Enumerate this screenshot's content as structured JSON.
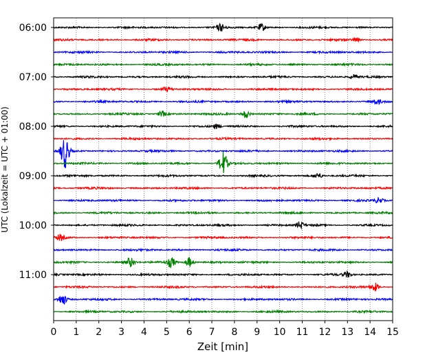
{
  "chart_data": {
    "type": "line",
    "title": "",
    "xlabel": "Zeit  [min]",
    "ylabel": "UTC (Lokalzeit = UTC + 01:00)",
    "xlim": [
      0,
      15
    ],
    "x_ticks": [
      "0",
      "1",
      "2",
      "3",
      "4",
      "5",
      "6",
      "7",
      "8",
      "9",
      "10",
      "11",
      "12",
      "13",
      "14",
      "15"
    ],
    "y_ticks": [
      "06:00",
      "07:00",
      "08:00",
      "09:00",
      "10:00",
      "11:00"
    ],
    "grid": "vertical dotted lines at each minute",
    "trace_interval_minutes": 15,
    "colors_cycle": [
      "#000000",
      "#ff0000",
      "#0000ff",
      "#008000"
    ],
    "traces": [
      {
        "start": "06:00",
        "color": "#000000",
        "events": [
          {
            "t": 7.4,
            "amp": 5
          },
          {
            "t": 9.2,
            "amp": 5
          }
        ]
      },
      {
        "start": "06:15",
        "color": "#ff0000",
        "events": [
          {
            "t": 13.4,
            "amp": 3
          }
        ]
      },
      {
        "start": "06:30",
        "color": "#0000ff",
        "events": []
      },
      {
        "start": "06:45",
        "color": "#008000",
        "events": []
      },
      {
        "start": "07:00",
        "color": "#000000",
        "events": [
          {
            "t": 13.3,
            "amp": 3
          }
        ]
      },
      {
        "start": "07:15",
        "color": "#ff0000",
        "events": [
          {
            "t": 5.0,
            "amp": 3
          }
        ]
      },
      {
        "start": "07:30",
        "color": "#0000ff",
        "events": [
          {
            "t": 14.3,
            "amp": 3
          }
        ]
      },
      {
        "start": "07:45",
        "color": "#008000",
        "events": [
          {
            "t": 4.8,
            "amp": 4
          },
          {
            "t": 8.5,
            "amp": 6
          }
        ]
      },
      {
        "start": "08:00",
        "color": "#000000",
        "events": [
          {
            "t": 7.2,
            "amp": 3
          }
        ]
      },
      {
        "start": "08:15",
        "color": "#ff0000",
        "events": []
      },
      {
        "start": "08:30",
        "color": "#0000ff",
        "events": [
          {
            "t": 0.5,
            "amp": 24
          }
        ]
      },
      {
        "start": "08:45",
        "color": "#008000",
        "events": [
          {
            "t": 7.5,
            "amp": 17
          }
        ]
      },
      {
        "start": "09:00",
        "color": "#000000",
        "events": [
          {
            "t": 11.7,
            "amp": 4
          }
        ]
      },
      {
        "start": "09:15",
        "color": "#ff0000",
        "events": []
      },
      {
        "start": "09:30",
        "color": "#0000ff",
        "events": [
          {
            "t": 14.4,
            "amp": 4
          }
        ]
      },
      {
        "start": "09:45",
        "color": "#008000",
        "events": []
      },
      {
        "start": "10:00",
        "color": "#000000",
        "events": [
          {
            "t": 10.9,
            "amp": 5
          }
        ]
      },
      {
        "start": "10:15",
        "color": "#ff0000",
        "events": [
          {
            "t": 0.3,
            "amp": 4
          }
        ]
      },
      {
        "start": "10:30",
        "color": "#0000ff",
        "events": []
      },
      {
        "start": "10:45",
        "color": "#008000",
        "events": [
          {
            "t": 3.4,
            "amp": 7
          },
          {
            "t": 5.2,
            "amp": 7
          },
          {
            "t": 6.0,
            "amp": 7
          }
        ]
      },
      {
        "start": "11:00",
        "color": "#000000",
        "events": [
          {
            "t": 13.0,
            "amp": 4
          }
        ]
      },
      {
        "start": "11:15",
        "color": "#ff0000",
        "events": [
          {
            "t": 14.2,
            "amp": 6
          }
        ]
      },
      {
        "start": "11:30",
        "color": "#0000ff",
        "events": [
          {
            "t": 0.4,
            "amp": 8
          }
        ]
      },
      {
        "start": "11:45",
        "color": "#008000",
        "events": []
      }
    ]
  }
}
